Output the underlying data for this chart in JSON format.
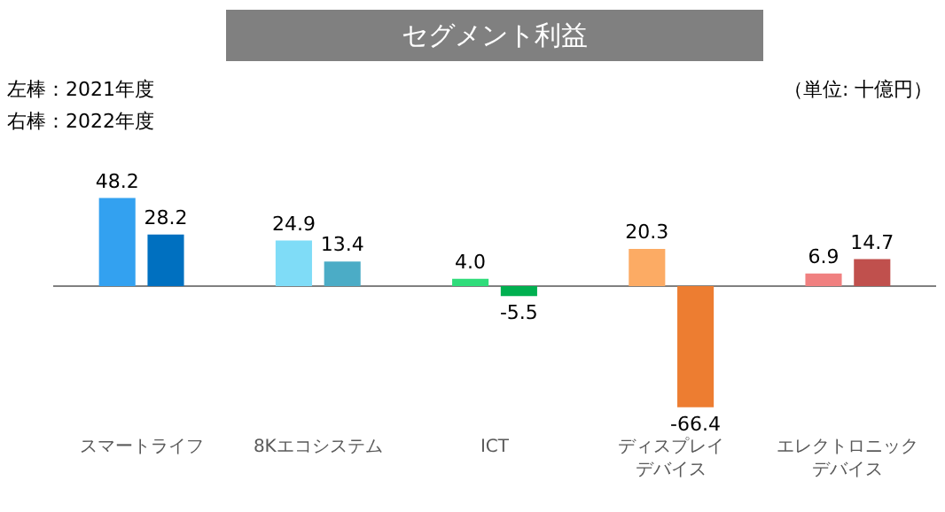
{
  "chart_data": {
    "type": "bar",
    "title": "セグメント利益",
    "categories": [
      "スマートライフ",
      "8Kエコシステム",
      "ICT",
      "ディスプレイデバイス",
      "エレクトロニックデバイス"
    ],
    "series": [
      {
        "values": [
          48.2,
          24.9,
          4.0,
          20.3,
          6.9
        ],
        "value_labels": [
          "48.2",
          "24.9",
          "4.0",
          "20.3",
          "6.9"
        ],
        "colors": [
          "#33a1f0",
          "#7fdcf7",
          "#2fdc7a",
          "#fcab64",
          "#f08080"
        ]
      },
      {
        "values": [
          28.2,
          13.4,
          -5.5,
          -66.4,
          14.7
        ],
        "value_labels": [
          "28.2",
          "13.4",
          "-5.5",
          "-66.4",
          "14.7"
        ],
        "colors": [
          "#0070c0",
          "#4bacc6",
          "#00b050",
          "#ed7d31",
          "#c0504d"
        ]
      }
    ],
    "legend": false,
    "annotations": [
      "左棒：2021年度",
      "右棒：2022年度",
      "（単位: 十億円）"
    ]
  }
}
